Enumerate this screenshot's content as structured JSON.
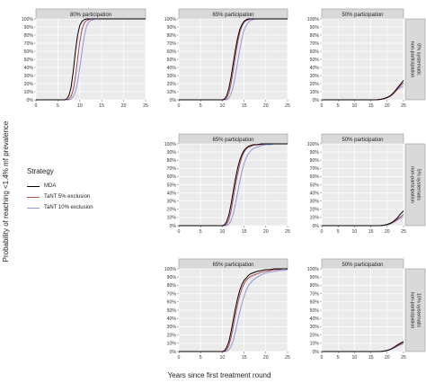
{
  "chart_data": {
    "type": "line",
    "layout": "faceted-grid",
    "xlabel": "Years since first treatment round",
    "ylabel": "Probability of reaching <1.4% mf prevalence",
    "xlim": [
      0,
      25
    ],
    "ylim": [
      0,
      1
    ],
    "xticks": [
      "0",
      "5",
      "10",
      "15",
      "20",
      "25"
    ],
    "yticks": [
      "0%",
      "10%",
      "20%",
      "30%",
      "40%",
      "50%",
      "60%",
      "70%",
      "80%",
      "90%",
      "100%"
    ],
    "grid": true,
    "panel_background": "#ebebeb",
    "strip_background": "#d9d9d9",
    "legend": {
      "title": "Strategy",
      "position": "left",
      "items": [
        {
          "label": "MDA",
          "color": "#000000"
        },
        {
          "label": "TaNT 5% exclusion",
          "color": "#b24a55"
        },
        {
          "label": "TaNT 10% exclusion",
          "color": "#8f98d8"
        }
      ]
    },
    "rows": [
      {
        "strip": "0% systematic non-participation",
        "panels": [
          {
            "title": "80% participation",
            "series": [
              {
                "name": "MDA",
                "x": [
                  0,
                  6.5,
                  7,
                  7.5,
                  8,
                  8.5,
                  9,
                  9.5,
                  10,
                  10.5,
                  11,
                  11.5,
                  12,
                  12.5,
                  13,
                  14,
                  25
                ],
                "y": [
                  0,
                  0,
                  0.01,
                  0.05,
                  0.15,
                  0.35,
                  0.6,
                  0.8,
                  0.92,
                  0.97,
                  0.99,
                  1,
                  1,
                  1,
                  1,
                  1,
                  1
                ]
              },
              {
                "name": "TaNT 5% exclusion",
                "x": [
                  0,
                  7,
                  7.5,
                  8,
                  8.5,
                  9,
                  9.5,
                  10,
                  10.5,
                  11,
                  11.5,
                  12,
                  12.5,
                  13,
                  14,
                  25
                ],
                "y": [
                  0,
                  0,
                  0.01,
                  0.04,
                  0.12,
                  0.28,
                  0.5,
                  0.72,
                  0.87,
                  0.95,
                  0.98,
                  0.99,
                  1,
                  1,
                  1,
                  1
                ]
              },
              {
                "name": "TaNT 10% exclusion",
                "x": [
                  0,
                  7.5,
                  8,
                  8.5,
                  9,
                  9.5,
                  10,
                  10.5,
                  11,
                  11.5,
                  12,
                  12.5,
                  13,
                  13.5,
                  14,
                  15,
                  25
                ],
                "y": [
                  0,
                  0,
                  0.01,
                  0.04,
                  0.1,
                  0.22,
                  0.4,
                  0.6,
                  0.78,
                  0.9,
                  0.96,
                  0.98,
                  0.99,
                  1,
                  1,
                  1,
                  1
                ]
              }
            ]
          },
          {
            "title": "65% participation",
            "series": [
              {
                "name": "MDA",
                "x": [
                  0,
                  10,
                  10.5,
                  11,
                  11.5,
                  12,
                  12.5,
                  13,
                  13.5,
                  14,
                  14.5,
                  15,
                  15.5,
                  16,
                  16.5,
                  17,
                  18,
                  25
                ],
                "y": [
                  0,
                  0,
                  0.01,
                  0.05,
                  0.14,
                  0.28,
                  0.45,
                  0.62,
                  0.76,
                  0.87,
                  0.93,
                  0.97,
                  0.99,
                  1,
                  1,
                  1,
                  1,
                  1
                ]
              },
              {
                "name": "TaNT 5% exclusion",
                "x": [
                  0,
                  10.5,
                  11,
                  11.5,
                  12,
                  12.5,
                  13,
                  13.5,
                  14,
                  14.5,
                  15,
                  15.5,
                  16,
                  16.5,
                  17,
                  18,
                  25
                ],
                "y": [
                  0,
                  0,
                  0.02,
                  0.08,
                  0.2,
                  0.36,
                  0.54,
                  0.7,
                  0.83,
                  0.91,
                  0.96,
                  0.98,
                  0.99,
                  1,
                  1,
                  1,
                  1
                ]
              },
              {
                "name": "TaNT 10% exclusion",
                "x": [
                  0,
                  11,
                  11.5,
                  12,
                  12.5,
                  13,
                  13.5,
                  14,
                  14.5,
                  15,
                  15.5,
                  16,
                  16.5,
                  17,
                  17.5,
                  18,
                  19,
                  25
                ],
                "y": [
                  0,
                  0,
                  0.02,
                  0.07,
                  0.16,
                  0.3,
                  0.46,
                  0.62,
                  0.76,
                  0.86,
                  0.92,
                  0.96,
                  0.98,
                  0.99,
                  1,
                  1,
                  1,
                  1
                ]
              }
            ]
          },
          {
            "title": "50% participation",
            "series": [
              {
                "name": "MDA",
                "x": [
                  0,
                  16,
                  17,
                  18,
                  19,
                  20,
                  21,
                  22,
                  23,
                  24,
                  25
                ],
                "y": [
                  0,
                  0,
                  0.002,
                  0.006,
                  0.015,
                  0.03,
                  0.05,
                  0.09,
                  0.14,
                  0.19,
                  0.24
                ]
              },
              {
                "name": "TaNT 5% exclusion",
                "x": [
                  0,
                  16.5,
                  17.5,
                  18.5,
                  19.5,
                  20.5,
                  21.5,
                  22.5,
                  23.5,
                  24.5,
                  25
                ],
                "y": [
                  0,
                  0,
                  0.003,
                  0.008,
                  0.018,
                  0.035,
                  0.06,
                  0.1,
                  0.15,
                  0.19,
                  0.21
                ]
              },
              {
                "name": "TaNT 10% exclusion",
                "x": [
                  0,
                  17,
                  18,
                  19,
                  20,
                  21,
                  22,
                  23,
                  24,
                  25
                ],
                "y": [
                  0,
                  0,
                  0.003,
                  0.01,
                  0.025,
                  0.045,
                  0.08,
                  0.12,
                  0.15,
                  0.17
                ]
              }
            ]
          }
        ]
      },
      {
        "strip": "5% systematic non-participation",
        "panels": [
          {
            "title": "65% participation",
            "series": [
              {
                "name": "MDA",
                "x": [
                  0,
                  10,
                  10.5,
                  11,
                  11.5,
                  12,
                  12.5,
                  13,
                  13.5,
                  14,
                  14.5,
                  15,
                  15.5,
                  16,
                  16.5,
                  17,
                  18,
                  19,
                  20,
                  25
                ],
                "y": [
                  0,
                  0,
                  0.01,
                  0.05,
                  0.13,
                  0.26,
                  0.42,
                  0.57,
                  0.7,
                  0.8,
                  0.87,
                  0.92,
                  0.95,
                  0.97,
                  0.98,
                  0.99,
                  0.99,
                  1,
                  1,
                  1
                ]
              },
              {
                "name": "TaNT 5% exclusion",
                "x": [
                  0,
                  10.5,
                  11,
                  11.5,
                  12,
                  12.5,
                  13,
                  13.5,
                  14,
                  14.5,
                  15,
                  15.5,
                  16,
                  16.5,
                  17,
                  18,
                  19,
                  20,
                  22,
                  25
                ],
                "y": [
                  0,
                  0,
                  0.02,
                  0.07,
                  0.18,
                  0.33,
                  0.49,
                  0.63,
                  0.75,
                  0.84,
                  0.9,
                  0.94,
                  0.96,
                  0.97,
                  0.98,
                  0.99,
                  0.99,
                  1,
                  1,
                  1
                ]
              },
              {
                "name": "TaNT 10% exclusion",
                "x": [
                  0,
                  11,
                  11.5,
                  12,
                  12.5,
                  13,
                  13.5,
                  14,
                  14.5,
                  15,
                  15.5,
                  16,
                  16.5,
                  17,
                  18,
                  19,
                  20,
                  21,
                  22,
                  25
                ],
                "y": [
                  0,
                  0,
                  0.02,
                  0.06,
                  0.14,
                  0.26,
                  0.4,
                  0.54,
                  0.66,
                  0.76,
                  0.83,
                  0.88,
                  0.91,
                  0.94,
                  0.96,
                  0.98,
                  0.99,
                  0.99,
                  1,
                  1
                ]
              }
            ]
          },
          {
            "title": "50% participation",
            "series": [
              {
                "name": "MDA",
                "x": [
                  0,
                  17,
                  18,
                  19,
                  20,
                  21,
                  22,
                  23,
                  24,
                  25
                ],
                "y": [
                  0,
                  0,
                  0.002,
                  0.006,
                  0.015,
                  0.03,
                  0.055,
                  0.09,
                  0.14,
                  0.18
                ]
              },
              {
                "name": "TaNT 5% exclusion",
                "x": [
                  0,
                  17.5,
                  18.5,
                  19.5,
                  20.5,
                  21.5,
                  22.5,
                  23.5,
                  24.5,
                  25
                ],
                "y": [
                  0,
                  0,
                  0.003,
                  0.008,
                  0.018,
                  0.035,
                  0.06,
                  0.09,
                  0.12,
                  0.14
                ]
              },
              {
                "name": "TaNT 10% exclusion",
                "x": [
                  0,
                  18,
                  19,
                  20,
                  21,
                  22,
                  23,
                  24,
                  25
                ],
                "y": [
                  0,
                  0,
                  0.004,
                  0.01,
                  0.022,
                  0.04,
                  0.065,
                  0.09,
                  0.11
                ]
              }
            ]
          }
        ]
      },
      {
        "strip": "10% systematic non-participation",
        "panels": [
          {
            "title": "65% participation",
            "series": [
              {
                "name": "MDA",
                "x": [
                  0,
                  10,
                  10.5,
                  11,
                  11.5,
                  12,
                  12.5,
                  13,
                  13.5,
                  14,
                  14.5,
                  15,
                  15.5,
                  16,
                  16.5,
                  17,
                  18,
                  19,
                  20,
                  21,
                  22,
                  23,
                  25
                ],
                "y": [
                  0,
                  0,
                  0.01,
                  0.05,
                  0.12,
                  0.24,
                  0.38,
                  0.52,
                  0.64,
                  0.74,
                  0.81,
                  0.86,
                  0.89,
                  0.92,
                  0.94,
                  0.95,
                  0.97,
                  0.98,
                  0.99,
                  0.99,
                  1,
                  1,
                  1
                ]
              },
              {
                "name": "TaNT 5% exclusion",
                "x": [
                  0,
                  10.5,
                  11,
                  11.5,
                  12,
                  12.5,
                  13,
                  13.5,
                  14,
                  14.5,
                  15,
                  15.5,
                  16,
                  17,
                  18,
                  19,
                  20,
                  21,
                  22,
                  23,
                  24,
                  25
                ],
                "y": [
                  0,
                  0,
                  0.02,
                  0.07,
                  0.17,
                  0.3,
                  0.44,
                  0.57,
                  0.68,
                  0.76,
                  0.82,
                  0.86,
                  0.89,
                  0.92,
                  0.94,
                  0.96,
                  0.97,
                  0.98,
                  0.99,
                  0.99,
                  1,
                  1
                ]
              },
              {
                "name": "TaNT 10% exclusion",
                "x": [
                  0,
                  11,
                  11.5,
                  12,
                  12.5,
                  13,
                  13.5,
                  14,
                  14.5,
                  15,
                  15.5,
                  16,
                  17,
                  18,
                  19,
                  20,
                  21,
                  22,
                  23,
                  24,
                  25
                ],
                "y": [
                  0,
                  0,
                  0.02,
                  0.06,
                  0.13,
                  0.24,
                  0.36,
                  0.48,
                  0.58,
                  0.67,
                  0.74,
                  0.8,
                  0.86,
                  0.9,
                  0.93,
                  0.95,
                  0.96,
                  0.97,
                  0.98,
                  0.98,
                  0.99
                ]
              }
            ]
          },
          {
            "title": "50% participation",
            "series": [
              {
                "name": "MDA",
                "x": [
                  0,
                  17,
                  18,
                  19,
                  20,
                  21,
                  22,
                  23,
                  24,
                  25
                ],
                "y": [
                  0,
                  0,
                  0.002,
                  0.006,
                  0.014,
                  0.028,
                  0.05,
                  0.075,
                  0.1,
                  0.12
                ]
              },
              {
                "name": "TaNT 5% exclusion",
                "x": [
                  0,
                  17.5,
                  18.5,
                  19.5,
                  20.5,
                  21.5,
                  22.5,
                  23.5,
                  24.5,
                  25
                ],
                "y": [
                  0,
                  0,
                  0.003,
                  0.008,
                  0.018,
                  0.035,
                  0.055,
                  0.08,
                  0.1,
                  0.11
                ]
              },
              {
                "name": "TaNT 10% exclusion",
                "x": [
                  0,
                  18,
                  19,
                  20,
                  21,
                  22,
                  23,
                  24,
                  25
                ],
                "y": [
                  0,
                  0,
                  0.004,
                  0.01,
                  0.022,
                  0.04,
                  0.06,
                  0.08,
                  0.09
                ]
              }
            ]
          }
        ]
      }
    ]
  }
}
